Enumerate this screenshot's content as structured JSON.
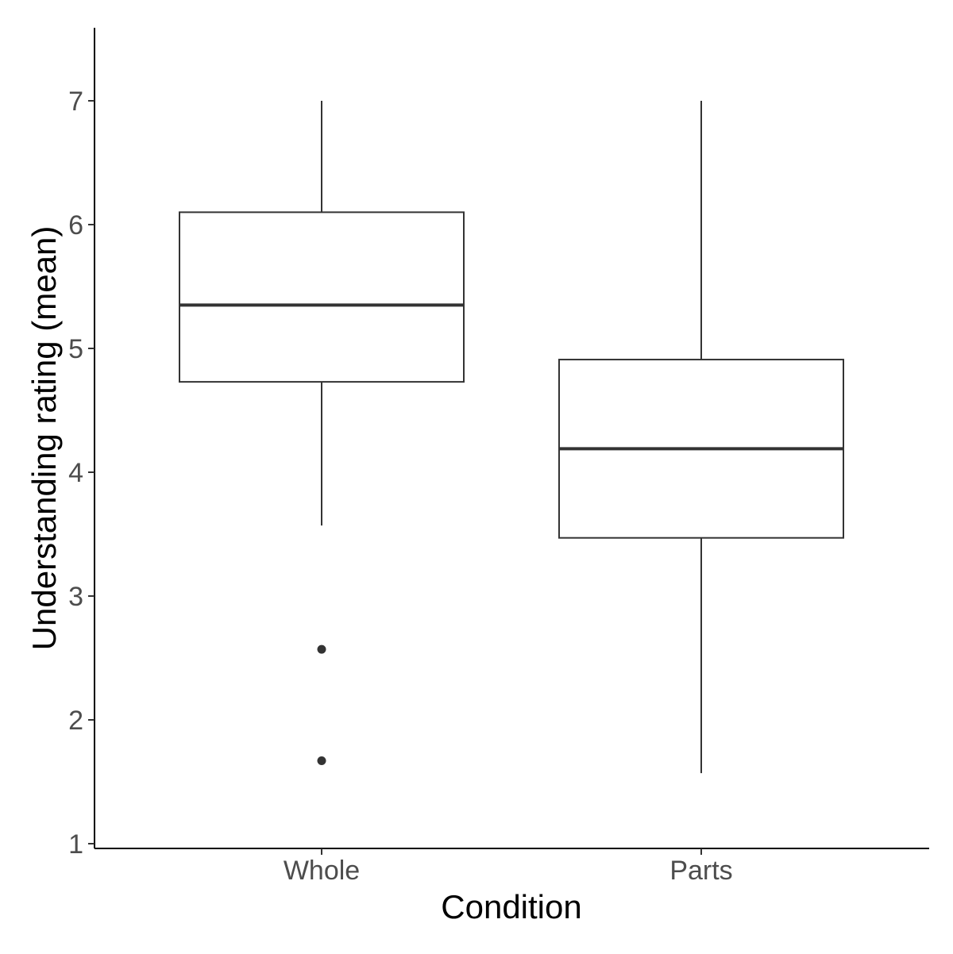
{
  "chart_data": {
    "type": "boxplot",
    "xlabel": "Condition",
    "ylabel": "Understanding rating (mean)",
    "ylim": [
      0.97,
      7.6
    ],
    "yticks": [
      1,
      2,
      3,
      4,
      5,
      6,
      7
    ],
    "categories": [
      "Whole",
      "Parts"
    ],
    "boxes": [
      {
        "category": "Whole",
        "whisker_low": 3.57,
        "q1": 4.73,
        "median": 5.35,
        "q3": 6.1,
        "whisker_high": 7.0,
        "outliers": [
          2.57,
          1.67
        ]
      },
      {
        "category": "Parts",
        "whisker_low": 1.57,
        "q1": 3.47,
        "median": 4.19,
        "q3": 4.91,
        "whisker_high": 7.0,
        "outliers": []
      }
    ],
    "grid": false,
    "legend": "none"
  }
}
